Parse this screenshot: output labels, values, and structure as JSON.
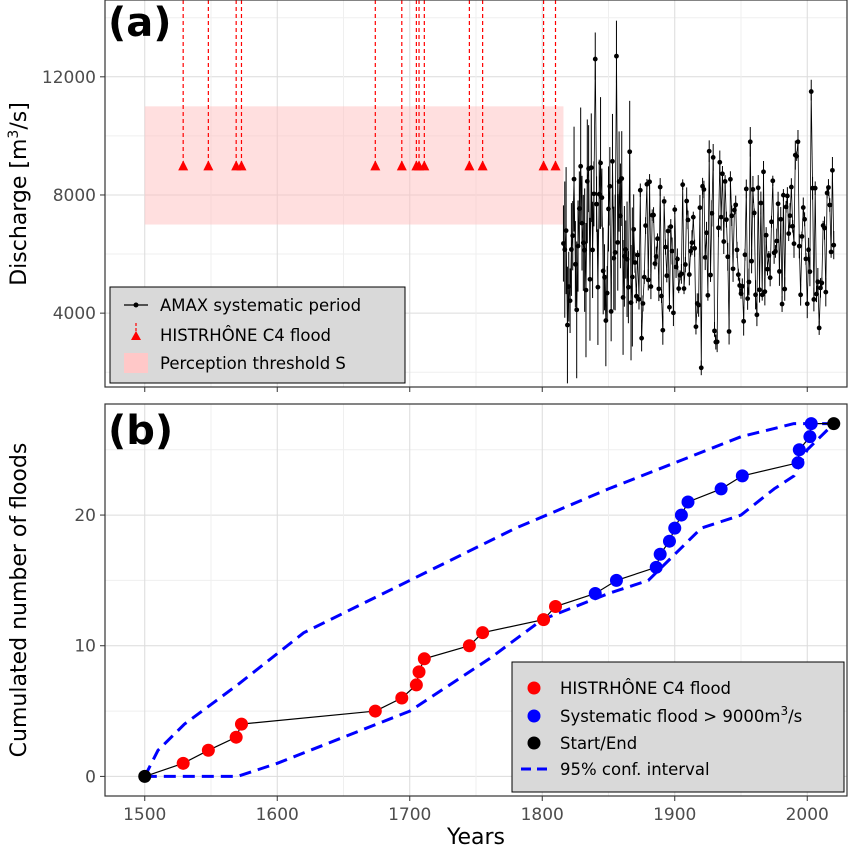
{
  "chart_data": [
    {
      "panel_label": "(a)",
      "type": "scatter",
      "ylabel_main": "Discharge [m",
      "ylabel_sup": "3",
      "ylabel_end": "/s]",
      "xlim": [
        1470,
        2030
      ],
      "ylim": [
        1500,
        14600
      ],
      "grid": true,
      "x_ticks": [
        1500,
        1600,
        1700,
        1800,
        1900,
        2000
      ],
      "y_ticks": [
        4000,
        8000,
        12000
      ],
      "y_tick_labels": [
        "4000",
        "8000",
        "12000"
      ],
      "perception_threshold": {
        "x_start": 1500,
        "x_end": 1816,
        "y_low": 7000,
        "y_high": 11000
      },
      "historical_floods": {
        "years": [
          1529,
          1548,
          1569,
          1573,
          1674,
          1694,
          1705,
          1707,
          1711,
          1745,
          1755,
          1801,
          1810
        ],
        "value": 9000,
        "line_top": 14600
      },
      "systematic_series_note": "annual maximum discharges 1816-2020 with uncertainty bars",
      "notable_points": [
        {
          "x": 1840,
          "y": 12600,
          "low": 11900,
          "high": 13500
        },
        {
          "x": 1856,
          "y": 12700,
          "low": 11800,
          "high": 13900
        },
        {
          "x": 2003,
          "y": 11500,
          "low": 11200,
          "high": 11900
        },
        {
          "x": 1920,
          "y": 2150,
          "low": 1900,
          "high": 2400
        },
        {
          "x": 1930,
          "y": 3400,
          "low": 3200,
          "high": 3700
        },
        {
          "x": 1957,
          "y": 9800,
          "low": 9300,
          "high": 10300
        },
        {
          "x": 1993,
          "y": 9800,
          "low": 9500,
          "high": 10200
        }
      ],
      "legend": {
        "position": "bottom-left",
        "entries": [
          "AMAX systematic period",
          "HISTRHÔNE  C4 flood",
          "Perception threshold S"
        ]
      }
    },
    {
      "panel_label": "(b)",
      "type": "line",
      "xlabel": "Years",
      "ylabel": "Cumulated number of floods",
      "xlim": [
        1470,
        2030
      ],
      "ylim": [
        -1.5,
        28.5
      ],
      "grid": true,
      "x_ticks": [
        1500,
        1600,
        1700,
        1800,
        1900,
        2000
      ],
      "x_tick_labels": [
        "1500",
        "1600",
        "1700",
        "1800",
        "1900",
        "2000"
      ],
      "y_ticks": [
        0,
        10,
        20
      ],
      "y_tick_labels": [
        "0",
        "10",
        "20"
      ],
      "series": [
        {
          "name": "Start/End",
          "color": "#000000",
          "x": [
            1500,
            2020
          ],
          "y": [
            0,
            27
          ]
        },
        {
          "name": "HISTRHÔNE  C4 flood",
          "color": "#ff0000",
          "x": [
            1529,
            1548,
            1569,
            1573,
            1674,
            1694,
            1705,
            1707,
            1711,
            1745,
            1755,
            1801,
            1810
          ],
          "y": [
            1,
            2,
            3,
            4,
            5,
            6,
            7,
            8,
            9,
            10,
            11,
            12,
            13
          ]
        },
        {
          "name": "Systematic flood > 9000m3/s",
          "color": "#0000ff",
          "x": [
            1840,
            1856,
            1886,
            1889,
            1896,
            1900,
            1905,
            1910,
            1935,
            1951,
            1993,
            1994,
            2002,
            2003
          ],
          "y": [
            14,
            15,
            16,
            17,
            18,
            19,
            20,
            21,
            22,
            23,
            24,
            25,
            26,
            27
          ]
        }
      ],
      "conf_interval_upper": {
        "x": [
          1500,
          1510,
          1530,
          1570,
          1620,
          1700,
          1780,
          1850,
          1900,
          1950,
          1990,
          2000,
          2010,
          2020
        ],
        "y": [
          0,
          2,
          4,
          7,
          11,
          15,
          19,
          22,
          24,
          26,
          27,
          27,
          27,
          27
        ]
      },
      "conf_interval_lower": {
        "x": [
          1500,
          1540,
          1570,
          1600,
          1650,
          1700,
          1760,
          1800,
          1850,
          1880,
          1900,
          1920,
          1950,
          1975,
          1990,
          2000,
          2010,
          2020
        ],
        "y": [
          0,
          0,
          0,
          1,
          3,
          5,
          9,
          12,
          14,
          15,
          17,
          19,
          20,
          22,
          23,
          25,
          26,
          27
        ]
      },
      "legend": {
        "position": "bottom-right",
        "entries": [
          {
            "label": "HISTRHÔNE  C4 flood",
            "color": "#ff0000"
          },
          {
            "label": "Systematic flood > 9000m",
            "sup": "3",
            "suffix": "/s",
            "color": "#0000ff"
          },
          {
            "label": "Start/End",
            "color": "#000000"
          },
          {
            "label": "95% conf. interval",
            "color": "#0000ff"
          }
        ]
      }
    }
  ]
}
